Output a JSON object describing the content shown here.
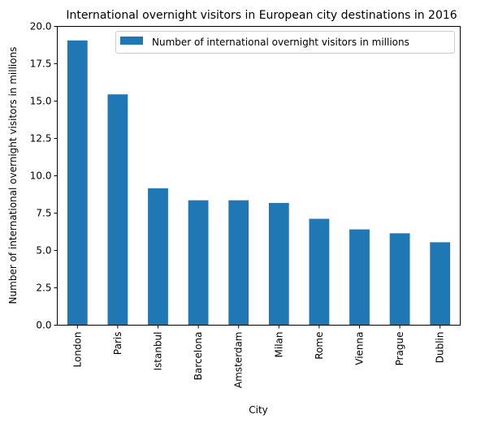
{
  "chart_data": {
    "type": "bar",
    "title": "International overnight visitors in European city destinations in 2016",
    "xlabel": "City",
    "ylabel": "Number of international overnight visitors in millions",
    "categories": [
      "London",
      "Paris",
      "Istanbul",
      "Barcelona",
      "Amsterdam",
      "Milan",
      "Rome",
      "Vienna",
      "Prague",
      "Dublin"
    ],
    "series": [
      {
        "name": "Number of international overnight visitors in millions",
        "color": "#1f77b4",
        "values": [
          19.06,
          15.45,
          9.16,
          8.36,
          8.36,
          8.18,
          7.12,
          6.41,
          6.15,
          5.55
        ]
      }
    ],
    "ylim": [
      0,
      20
    ],
    "yticks": [
      "0.0",
      "2.5",
      "5.0",
      "7.5",
      "10.0",
      "12.5",
      "15.0",
      "17.5",
      "20.0"
    ],
    "grid": false,
    "legend_position": "top-right"
  }
}
